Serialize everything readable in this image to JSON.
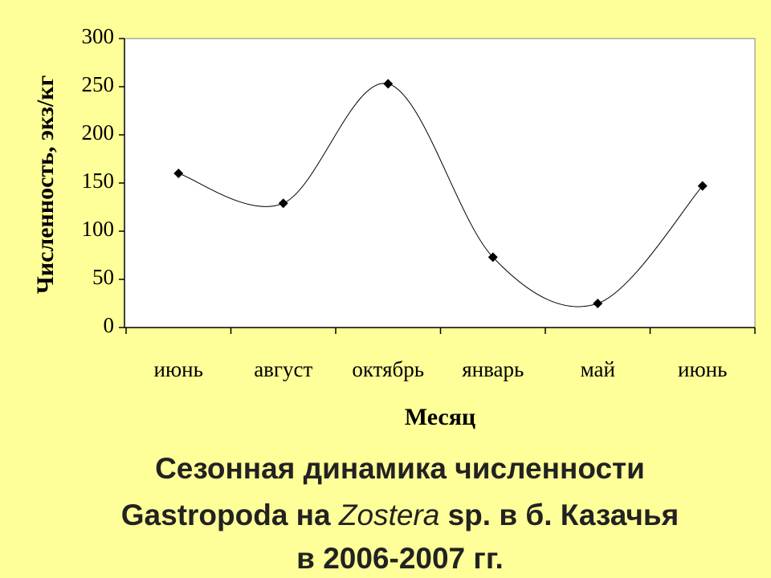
{
  "chart_data": {
    "type": "line",
    "categories": [
      "июнь",
      "август",
      "октябрь",
      "январь",
      "май",
      "июнь"
    ],
    "values": [
      160,
      129,
      253,
      73,
      25,
      147
    ],
    "color": "#000000",
    "ylim": [
      0,
      300
    ],
    "yticks": [
      0,
      50,
      100,
      150,
      200,
      250,
      300
    ],
    "ylabel": "Численность, экз/кг",
    "xlabel": "Месяц",
    "smooth": true,
    "title_lines": [
      [
        "Сезонная динамика численности"
      ],
      [
        "Gastropoda на ",
        "Zostera",
        " sp. в б. Казачья"
      ],
      [
        "в 2006-2007 гг."
      ]
    ]
  }
}
